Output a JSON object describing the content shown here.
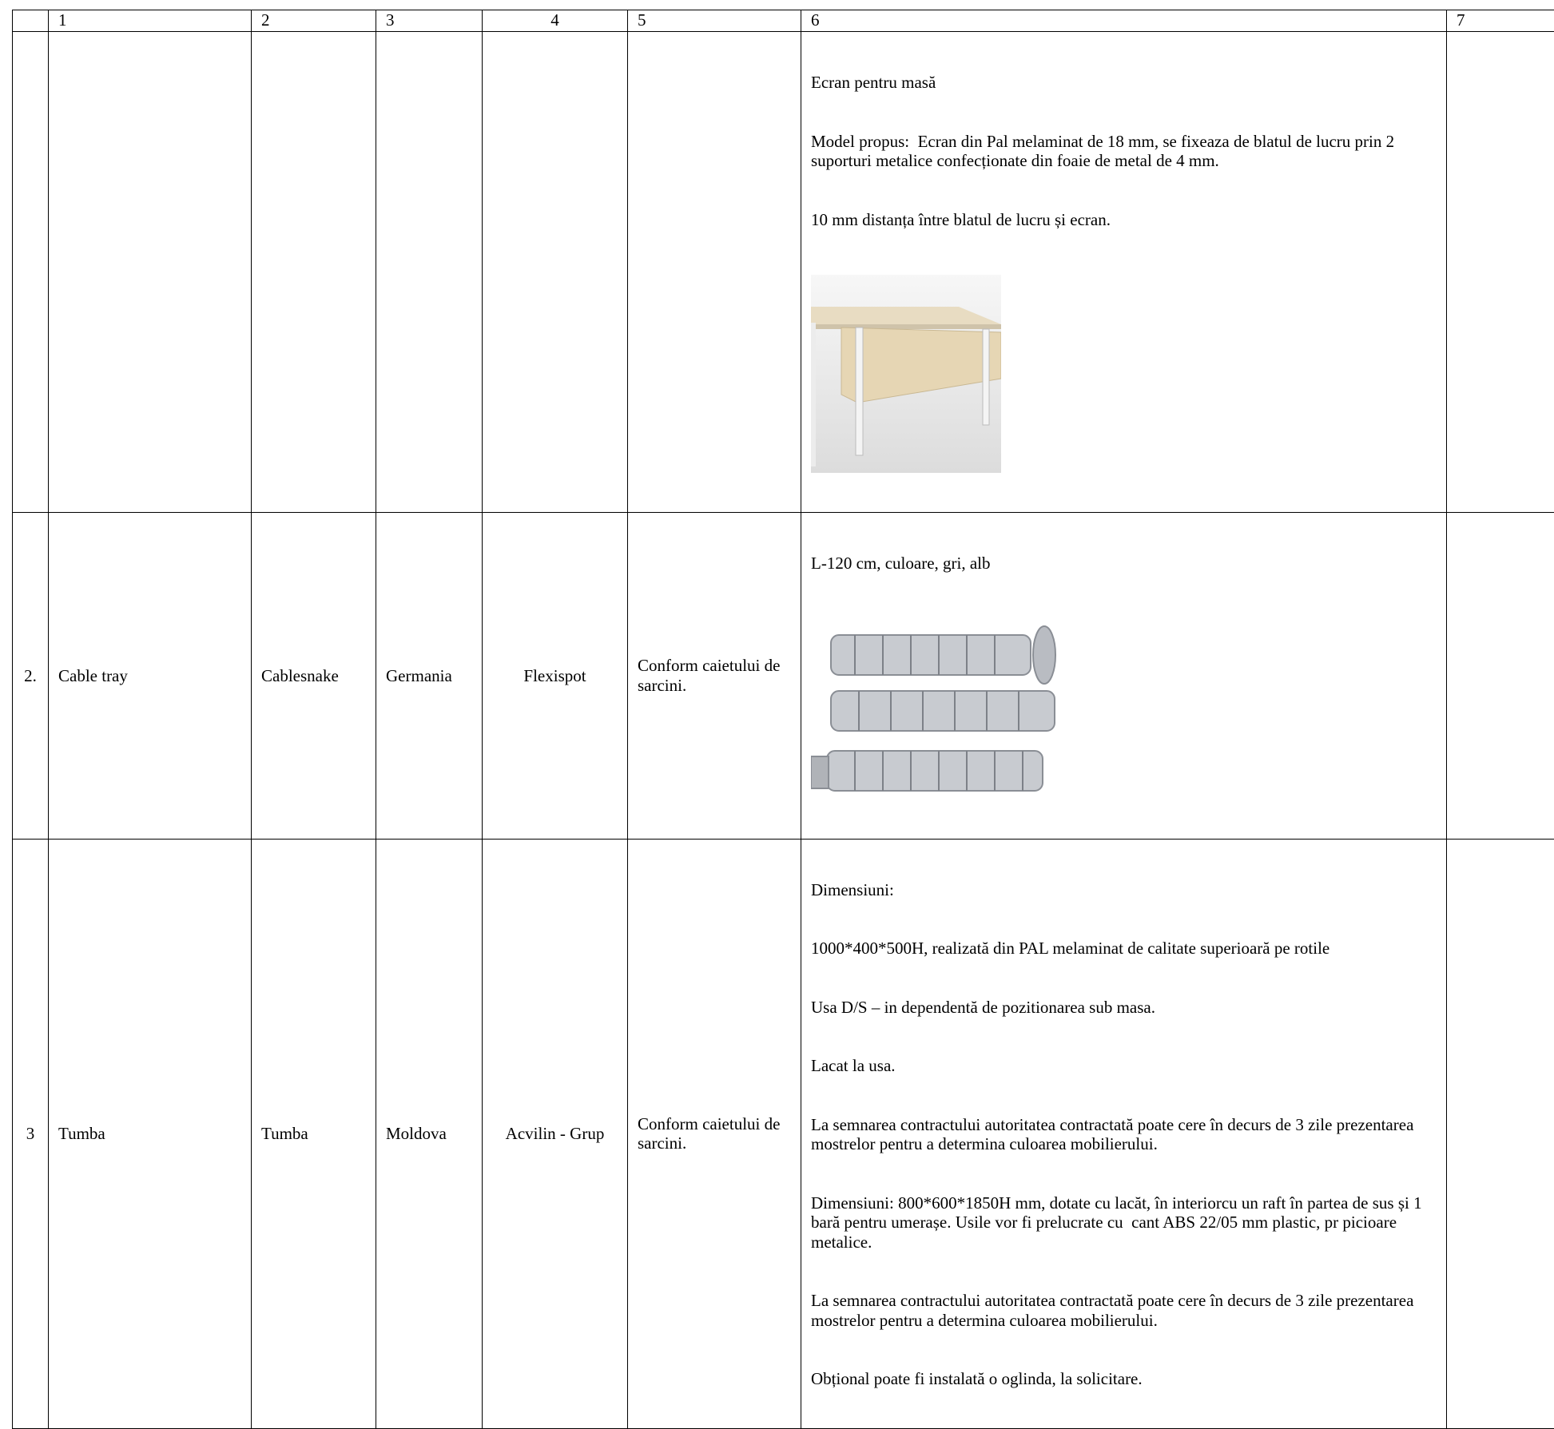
{
  "table": {
    "header": [
      "1",
      "2",
      "3",
      "4",
      "5",
      "6",
      "7"
    ],
    "rows": [
      {
        "description": [
          "Ecran pentru masă",
          "Model propus:  Ecran din Pal melaminat de 18 mm, se fixeaza de blatul de lucru prin 2 suporturi metalice confecționate din foaie de metal de 4 mm.",
          "10 mm distanța între blatul de lucru și ecran."
        ]
      },
      {
        "number": "2.",
        "name": "Cable tray",
        "model": "Cablesnake",
        "country": "Germania",
        "manufacturer": "Flexispot",
        "compliance": "Conform caietului de sarcini.",
        "description": [
          "L-120 cm, culoare, gri, alb"
        ]
      },
      {
        "number": "3",
        "name": "Tumba",
        "model": "Tumba",
        "country": "Moldova",
        "manufacturer": "Acvilin - Grup",
        "compliance": "Conform caietului de sarcini.",
        "description": [
          "Dimensiuni:",
          "1000*400*500H, realizată din PAL melaminat de calitate superioară pe rotile",
          "Usa D/S – in dependentă de pozitionarea sub masa.",
          "Lacat la usa.",
          "La semnarea contractului autoritatea contractată poate cere în decurs de 3 zile prezentarea mostrelor pentru a determina culoarea mobilierului.",
          "Dimensiuni: 800*600*1850H mm, dotate cu lacăt, în interiorcu un raft în partea de sus și 1 bară pentru umerașe. Usile vor fi prelucrate cu  cant ABS 22/05 mm plastic, pr picioare metalice.",
          "La semnarea contractului autoritatea contractată poate cere în decurs de 3 zile prezentarea mostrelor pentru a determina culoarea mobilierului.",
          "Obțional poate fi instalată o oglinda, la solicitare."
        ]
      }
    ]
  }
}
